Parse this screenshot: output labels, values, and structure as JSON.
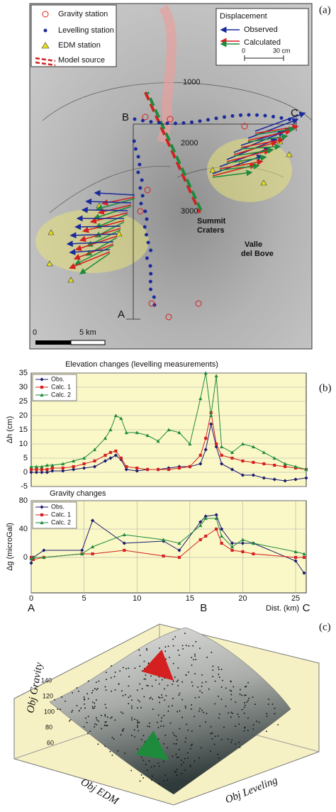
{
  "panel_labels": [
    "(a)",
    "(b)",
    "(c)"
  ],
  "map": {
    "legend": [
      "Gravity station",
      "Levelling station",
      "EDM station",
      "Model source"
    ],
    "displacement": {
      "title": "Displacement",
      "observed": "Observed",
      "calculated": "Calculated",
      "scale": [
        "0",
        "30 cm"
      ]
    },
    "contours": [
      "1000",
      "2000",
      "3000"
    ],
    "profile_points": [
      "A",
      "B",
      "C"
    ],
    "places": [
      "Summit",
      "Craters",
      "Valle",
      "del Bove"
    ],
    "scale_bar": [
      "0",
      "5 km"
    ]
  },
  "chart_data": [
    {
      "type": "line",
      "title": "Elevation changes (levelling measurements)",
      "ylabel": "Δh (cm)",
      "x": [
        0,
        0.5,
        1,
        1.5,
        2,
        3,
        4,
        5,
        6,
        7,
        7.5,
        8,
        8.5,
        9,
        10,
        11,
        12,
        13,
        14,
        15,
        16,
        16.5,
        17,
        17.5,
        18,
        19,
        20,
        21,
        22,
        23,
        24,
        25,
        26
      ],
      "series": [
        {
          "name": "Obs.",
          "color": "#1a1a6e",
          "marker": "diamond",
          "values": [
            0,
            0,
            0,
            0,
            0.5,
            0.5,
            1,
            1.5,
            2,
            4,
            5,
            6,
            4.5,
            1,
            0.5,
            1,
            1,
            1.5,
            2,
            2,
            3,
            8,
            17,
            9,
            3,
            1,
            -1,
            -1,
            -2,
            -2.5,
            -3,
            -2.5,
            -2
          ]
        },
        {
          "name": "Calc. 1",
          "color": "#d42020",
          "marker": "square",
          "values": [
            1,
            1,
            1,
            1,
            1.5,
            1.5,
            2,
            3,
            4,
            6,
            7,
            7.5,
            5,
            2,
            1.5,
            1,
            1,
            1,
            1.5,
            2,
            6,
            12,
            21,
            10,
            6,
            5,
            4,
            3.5,
            3,
            2.5,
            2,
            1.5,
            1
          ]
        },
        {
          "name": "Calc. 2",
          "color": "#1e8a3c",
          "marker": "triangle",
          "values": [
            2,
            2,
            2,
            2.5,
            2.5,
            3,
            4,
            5,
            8,
            12,
            15,
            20,
            19,
            14,
            14,
            13,
            11,
            15,
            14,
            10,
            26,
            35,
            20,
            34,
            9,
            7,
            10,
            9,
            7,
            5,
            3,
            2,
            1
          ]
        }
      ],
      "xlim": [
        0,
        26
      ],
      "ylim": [
        -5,
        35
      ],
      "yticks": [
        -5,
        0,
        5,
        10,
        15,
        20,
        25,
        30,
        35
      ],
      "grid": true,
      "legend": "upper left"
    },
    {
      "type": "line",
      "title": "Gravity changes",
      "ylabel": "Δg (microGal)",
      "xlabel": "Dist. (km)",
      "x": [
        0,
        0.2,
        1.2,
        4.8,
        5.8,
        8.8,
        12.5,
        14,
        16,
        16.5,
        17.5,
        18,
        19,
        20,
        21,
        25,
        25.8
      ],
      "series": [
        {
          "name": "Obs.",
          "color": "#1a1a6e",
          "marker": "diamond",
          "values": [
            -8,
            0,
            10,
            10,
            52,
            20,
            23,
            10,
            50,
            58,
            60,
            40,
            20,
            20,
            20,
            -5,
            -22
          ]
        },
        {
          "name": "Calc. 1",
          "color": "#d42020",
          "marker": "square",
          "values": [
            0,
            -3,
            0,
            5,
            5,
            10,
            2,
            0,
            25,
            30,
            40,
            20,
            10,
            8,
            5,
            0,
            0
          ]
        },
        {
          "name": "Calc. 2",
          "color": "#1e8a3c",
          "marker": "triangle",
          "values": [
            -2,
            0,
            0,
            5,
            15,
            32,
            25,
            20,
            45,
            55,
            55,
            30,
            15,
            25,
            20,
            8,
            5
          ]
        }
      ],
      "xlim": [
        0,
        26
      ],
      "ylim": [
        -50,
        80
      ],
      "xticks": [
        0,
        5,
        10,
        15,
        20,
        25
      ],
      "yticks": [
        0,
        40,
        80
      ],
      "grid": true,
      "legend": "upper left",
      "profile_labels": [
        "A",
        "B",
        "C"
      ]
    }
  ],
  "surface": {
    "z_label": "Obj Gravity",
    "x_label": "Obj EDM",
    "y_label": "Obj Leveling",
    "z_ticks": [
      140,
      120,
      100,
      80,
      60
    ]
  }
}
